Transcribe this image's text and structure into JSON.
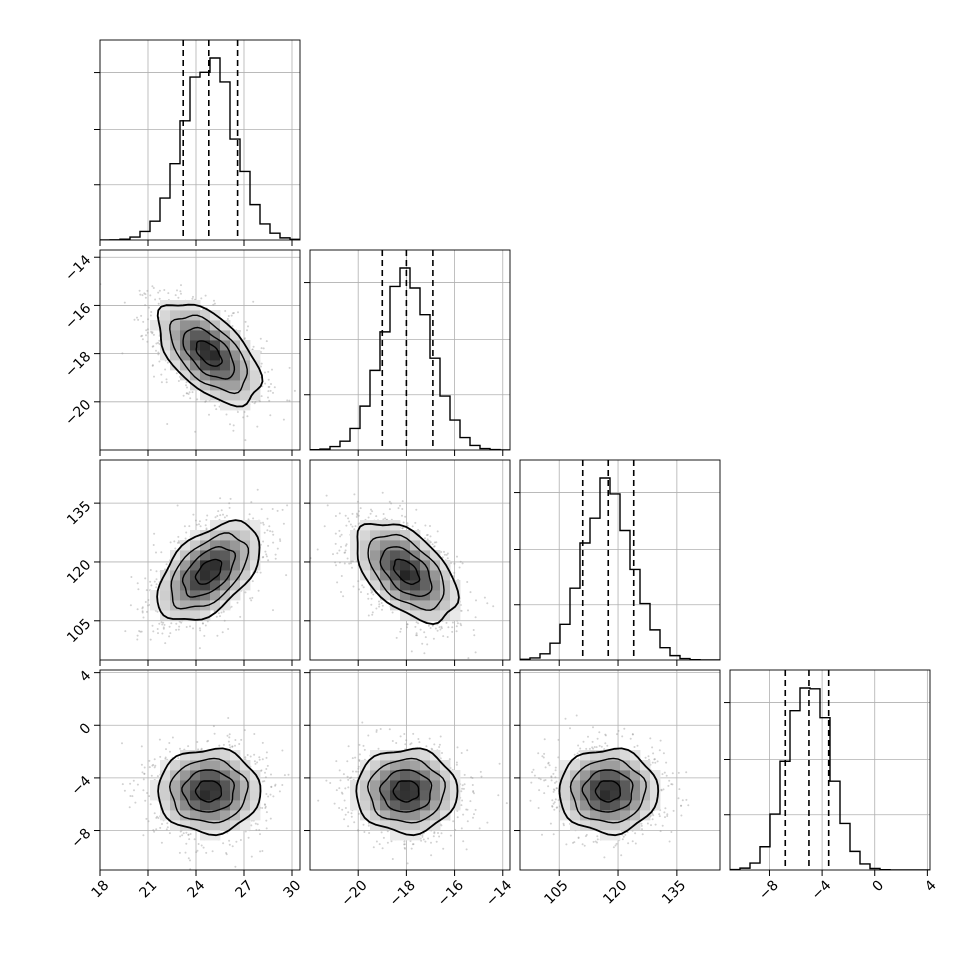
{
  "chart_data": {
    "type": "corner",
    "title": "",
    "grid": true,
    "parameters": [
      {
        "range": [
          18,
          30.5
        ],
        "ticks": [
          {
            "value": 18,
            "label": "18"
          },
          {
            "value": 21,
            "label": "21"
          },
          {
            "value": 24,
            "label": "24"
          },
          {
            "value": 27,
            "label": "27"
          },
          {
            "value": 30,
            "label": "30"
          }
        ],
        "center": 24.8,
        "sd": 1.6,
        "quantiles": [
          23.2,
          24.8,
          26.6
        ]
      },
      {
        "range": [
          -22,
          -13.7
        ],
        "ticks": [
          {
            "value": -20,
            "label": "−20"
          },
          {
            "value": -18,
            "label": "−18"
          },
          {
            "value": -16,
            "label": "−16"
          },
          {
            "value": -14,
            "label": "−14"
          }
        ],
        "center": -18.0,
        "sd": 1.05,
        "quantiles": [
          -19.0,
          -18.0,
          -16.9
        ]
      },
      {
        "range": [
          95,
          146
        ],
        "ticks": [
          {
            "value": 105,
            "label": "105"
          },
          {
            "value": 120,
            "label": "120"
          },
          {
            "value": 135,
            "label": "135"
          }
        ],
        "center": 117.5,
        "sd": 6.3,
        "quantiles": [
          111.0,
          117.5,
          124.0
        ]
      },
      {
        "range": [
          -11,
          4.2
        ],
        "ticks": [
          {
            "value": -8,
            "label": "−8"
          },
          {
            "value": -4,
            "label": "−4"
          },
          {
            "value": 0,
            "label": "0"
          },
          {
            "value": 4,
            "label": "4"
          }
        ],
        "center": -5.0,
        "sd": 1.6,
        "quantiles": [
          -6.8,
          -5.0,
          -3.5
        ]
      }
    ],
    "correlations": [
      {
        "i": 1,
        "j": 0,
        "rho": -0.55
      },
      {
        "i": 2,
        "j": 0,
        "rho": 0.5
      },
      {
        "i": 2,
        "j": 1,
        "rho": -0.5
      },
      {
        "i": 3,
        "j": 0,
        "rho": 0.0
      },
      {
        "i": 3,
        "j": 1,
        "rho": 0.0
      },
      {
        "i": 3,
        "j": 2,
        "rho": 0.0
      }
    ],
    "contour_levels_sigma": [
      0.5,
      1.0,
      1.5,
      2.0
    ],
    "histogram": {
      "bins": 20,
      "style": "step",
      "quantile_lines": "dashed"
    },
    "hist2d": {
      "bins": 20,
      "colormap": "greys",
      "scatter_points": "light grey"
    },
    "colors": {
      "line": "#000000",
      "grid": "#b0b0b0",
      "points": "#9a9a9a"
    }
  }
}
